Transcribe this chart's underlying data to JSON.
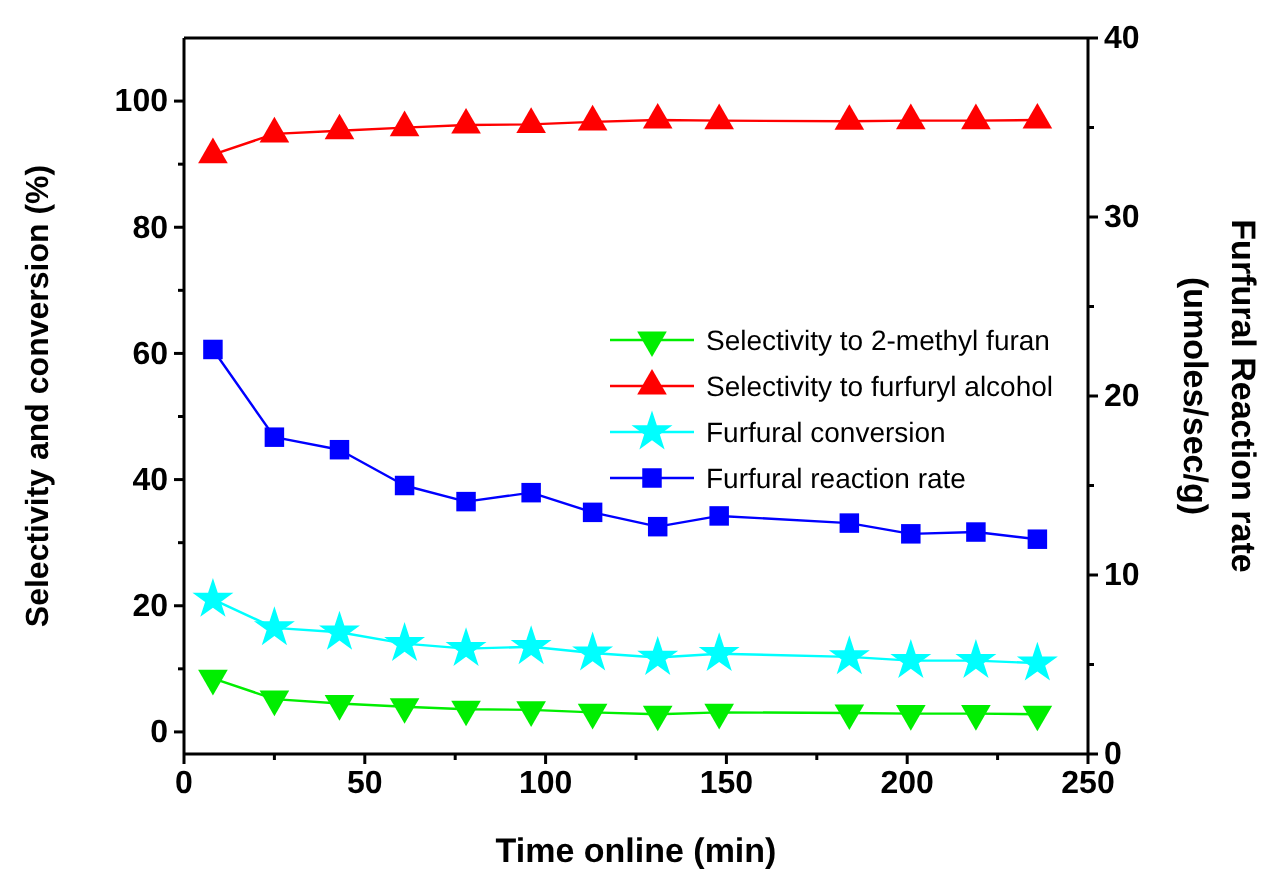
{
  "chart_data": {
    "type": "line",
    "xlabel": "Time online (min)",
    "ylabel": "Selectivity and conversion (%)",
    "y2label": "Furfural Reaction rate\n(umoles/sec/g)",
    "x": [
      8,
      25,
      43,
      61,
      78,
      96,
      113,
      131,
      148,
      184,
      201,
      219,
      236
    ],
    "xlim": [
      0,
      250
    ],
    "xticks": [
      0,
      {
        "value": 25,
        "label": null
      },
      50,
      {
        "value": 75,
        "label": null
      },
      100,
      {
        "value": 125,
        "label": null
      },
      150,
      {
        "value": 175,
        "label": null
      },
      200,
      {
        "value": 225,
        "label": null
      },
      250
    ],
    "ylim": [
      -3.5,
      110
    ],
    "yticks": [
      0,
      {
        "value": 10,
        "label": null
      },
      20,
      {
        "value": 30,
        "label": null
      },
      40,
      {
        "value": 50,
        "label": null
      },
      60,
      {
        "value": 70,
        "label": null
      },
      80,
      {
        "value": 90,
        "label": null
      },
      100
    ],
    "y2lim": [
      0,
      40
    ],
    "y2ticks": [
      0,
      {
        "value": 5,
        "label": null
      },
      10,
      {
        "value": 15,
        "label": null
      },
      20,
      {
        "value": 25,
        "label": null
      },
      30,
      {
        "value": 35,
        "label": null
      },
      40
    ],
    "legend": "right",
    "grid": false,
    "series": [
      {
        "name": "Selectivity to 2-methyl furan",
        "color": "#00ee00",
        "marker": "triangle-down",
        "values": [
          8.5,
          5.2,
          4.5,
          4.0,
          3.6,
          3.5,
          3.1,
          2.8,
          3.1,
          3.0,
          2.9,
          2.9,
          2.8
        ]
      },
      {
        "name": "Selectivity to furfuryl alcohol",
        "color": "#ff0000",
        "marker": "triangle",
        "values": [
          91.5,
          94.8,
          95.3,
          95.8,
          96.2,
          96.3,
          96.7,
          97.0,
          96.9,
          96.8,
          96.9,
          96.9,
          97.0
        ]
      },
      {
        "name": "Furfural conversion",
        "color": "#00ffff",
        "marker": "star",
        "values": [
          21,
          16.5,
          15.8,
          14,
          13.2,
          13.5,
          12.5,
          11.8,
          12.4,
          11.9,
          11.3,
          11.3,
          10.9
        ]
      },
      {
        "name": "Furfural reaction rate",
        "color": "#0000ff",
        "marker": "square",
        "axis": "y2",
        "values": [
          22.6,
          17.7,
          17.0,
          15.0,
          14.1,
          14.6,
          13.5,
          12.7,
          13.3,
          12.9,
          12.3,
          12.4,
          12.0
        ]
      }
    ]
  }
}
